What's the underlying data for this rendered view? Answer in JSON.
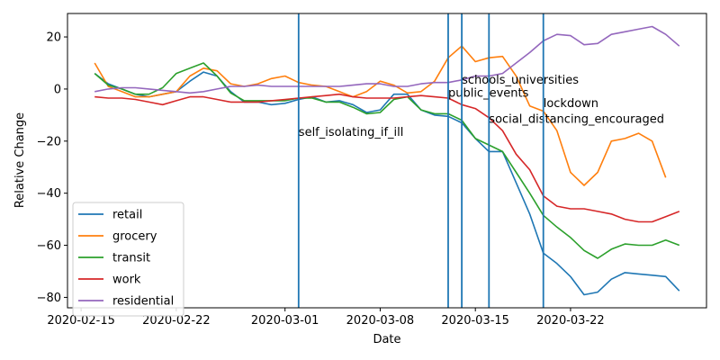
{
  "chart_data": {
    "type": "line",
    "title": "",
    "xlabel": "Date",
    "ylabel": "Relative Change",
    "x_start": "2020-02-16",
    "xticks": [
      "2020-02-15",
      "2020-02-22",
      "2020-03-01",
      "2020-03-08",
      "2020-03-15",
      "2020-03-22"
    ],
    "yticks": [
      20,
      0,
      -20,
      -40,
      -60,
      -80
    ],
    "ylim": [
      -84,
      29
    ],
    "xlim": [
      "2020-02-14",
      "2020-04-01"
    ],
    "grid": false,
    "legend_position": "lower-left",
    "series": [
      {
        "name": "retail",
        "color": "#1f77b4",
        "values": [
          6,
          2,
          0,
          -2,
          -3,
          -2,
          -1,
          3,
          6.5,
          5,
          -1,
          -5,
          -5,
          -6,
          -5.5,
          -4,
          -3,
          -5,
          -4.5,
          -6,
          -9,
          -8,
          -2,
          -2,
          -8,
          -10,
          -10.5,
          -13,
          -19,
          -24,
          -24,
          -36,
          -48,
          -63,
          -67,
          -72,
          -79,
          -78,
          -73,
          -70.5,
          -71,
          -71.5,
          -72,
          -77.5
        ]
      },
      {
        "name": "grocery",
        "color": "#ff7f0e",
        "values": [
          10,
          1,
          -1,
          -3,
          -3,
          -2,
          -1,
          5,
          8,
          7,
          2,
          1,
          2,
          4,
          5,
          2.5,
          1.5,
          1,
          -1,
          -3,
          -1,
          3,
          1.5,
          -1.5,
          -1,
          3,
          12,
          16.5,
          10.5,
          12,
          12.5,
          5,
          -6.5,
          -8.5,
          -16,
          -32,
          -37,
          -32,
          -20,
          -19,
          -17,
          -20,
          -34
        ]
      },
      {
        "name": "transit",
        "color": "#2ca02c",
        "values": [
          6,
          1.5,
          0,
          -2,
          -2,
          0.5,
          6,
          8,
          10,
          5,
          -1.5,
          -4.5,
          -4.5,
          -4.5,
          -4.5,
          -3.5,
          -3.5,
          -5,
          -5,
          -7,
          -9.5,
          -9,
          -4,
          -3,
          -8,
          -9.5,
          -9.5,
          -12,
          -19,
          -21.5,
          -24,
          -32,
          -40,
          -48.5,
          -53,
          -57,
          -62,
          -65,
          -61.5,
          -59.5,
          -60,
          -60,
          -58,
          -60
        ]
      },
      {
        "name": "work",
        "color": "#d62728",
        "values": [
          -3,
          -3.5,
          -3.5,
          -4,
          -5,
          -6,
          -4.5,
          -3,
          -3,
          -4,
          -5,
          -5,
          -5,
          -4.5,
          -4,
          -3.5,
          -3,
          -2.5,
          -2,
          -3,
          -3.5,
          -3.5,
          -3.5,
          -3,
          -2.5,
          -3,
          -3.5,
          -6,
          -7.5,
          -11,
          -16,
          -25,
          -31,
          -41,
          -45,
          -46,
          -46,
          -47,
          -48,
          -50,
          -51,
          -51,
          -49,
          -47
        ]
      },
      {
        "name": "residential",
        "color": "#9467bd",
        "values": [
          -1,
          0,
          0.5,
          0.5,
          0,
          -0.5,
          -1,
          -1.5,
          -1,
          0,
          1,
          1,
          1.5,
          1,
          1,
          1,
          1,
          1,
          1,
          1.5,
          2,
          2,
          1,
          1,
          2,
          2.5,
          2.5,
          3.5,
          5,
          5,
          6,
          10,
          14,
          18.5,
          21,
          20.5,
          17,
          17.5,
          21,
          22,
          23,
          24,
          21,
          16.5
        ]
      }
    ],
    "events": [
      {
        "label": "self_isolating_if_ill",
        "date": "2020-03-02",
        "label_y": -18
      },
      {
        "label": "public_events",
        "date": "2020-03-13",
        "label_y": -3
      },
      {
        "label": "schools_universities",
        "date": "2020-03-14",
        "label_y": 2
      },
      {
        "label": "social_distancing_encouraged",
        "date": "2020-03-16",
        "label_y": -13
      },
      {
        "label": "lockdown",
        "date": "2020-03-20",
        "label_y": -7
      }
    ],
    "event_line_color": "#1f77b4"
  }
}
